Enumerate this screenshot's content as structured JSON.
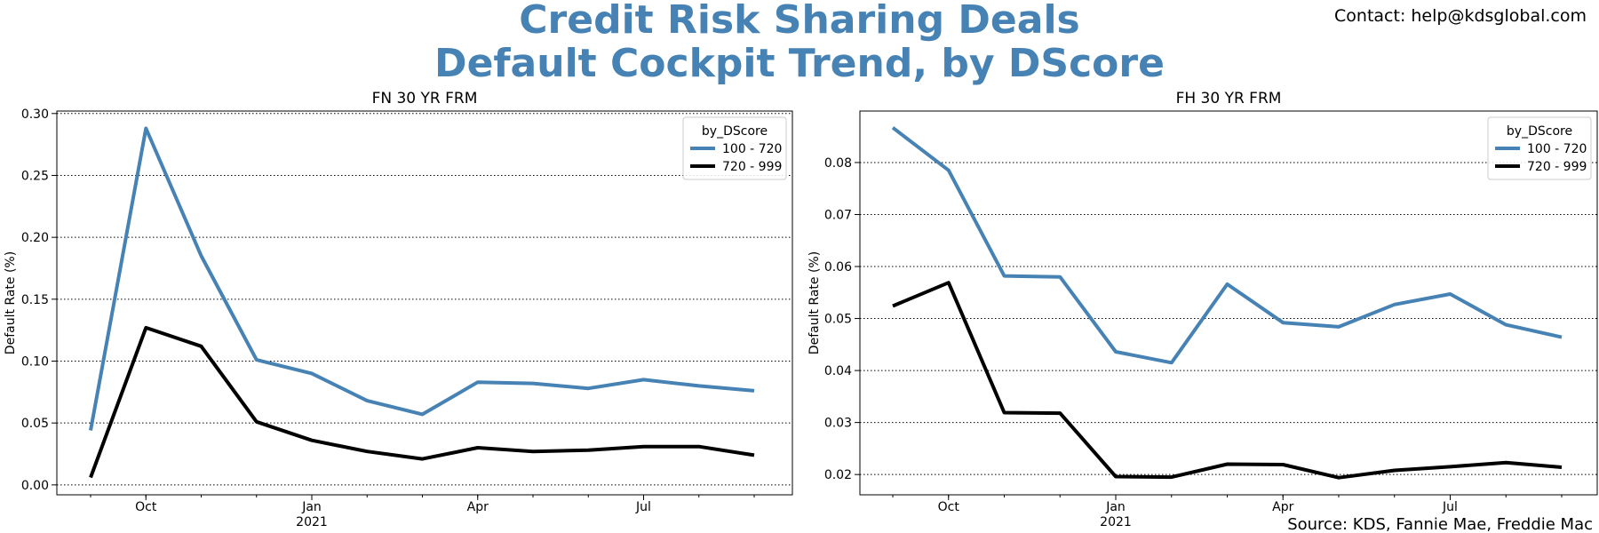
{
  "header": {
    "title_line1": "Credit Risk Sharing Deals",
    "title_line2": "Default Cockpit Trend, by DScore",
    "contact": "Contact: help@kdsglobal.com",
    "source": "Source: KDS, Fannie Mae, Freddie Mac"
  },
  "colors": {
    "accent": "#4682b4",
    "series_high": "#4682b4",
    "series_low": "#000000"
  },
  "chart_data": [
    {
      "type": "line",
      "title": "FN 30 YR FRM",
      "xlabel": "",
      "ylabel": "Default Rate (%)",
      "x": [
        "2020-09",
        "2020-10",
        "2020-11",
        "2020-12",
        "2021-01",
        "2021-02",
        "2021-03",
        "2021-04",
        "2021-05",
        "2021-06",
        "2021-07",
        "2021-08",
        "2021-09"
      ],
      "x_ticks": [
        {
          "month": "2020-10",
          "label": "Oct",
          "sub": ""
        },
        {
          "month": "2021-01",
          "label": "Jan",
          "sub": "2021"
        },
        {
          "month": "2021-04",
          "label": "Apr",
          "sub": ""
        },
        {
          "month": "2021-07",
          "label": "Jul",
          "sub": ""
        }
      ],
      "ylim": [
        -0.008,
        0.302
      ],
      "y_ticks": [
        0.0,
        0.05,
        0.1,
        0.15,
        0.2,
        0.25,
        0.3
      ],
      "y_tick_labels": [
        "0.00",
        "0.05",
        "0.10",
        "0.15",
        "0.20",
        "0.25",
        "0.30"
      ],
      "grid": "horizontal-dotted",
      "legend": {
        "title": "by_DScore",
        "position": "top-right"
      },
      "series": [
        {
          "name": "100 - 720",
          "color": "#4682b4",
          "values": [
            0.044,
            0.288,
            0.185,
            0.101,
            0.09,
            0.068,
            0.057,
            0.083,
            0.082,
            0.078,
            0.085,
            0.08,
            0.076
          ]
        },
        {
          "name": "720 - 999",
          "color": "#000000",
          "values": [
            0.006,
            0.127,
            0.112,
            0.051,
            0.036,
            0.027,
            0.021,
            0.03,
            0.027,
            0.028,
            0.031,
            0.031,
            0.024
          ]
        }
      ]
    },
    {
      "type": "line",
      "title": "FH 30 YR FRM",
      "xlabel": "",
      "ylabel": "Default Rate (%)",
      "x": [
        "2020-09",
        "2020-10",
        "2020-11",
        "2020-12",
        "2021-01",
        "2021-02",
        "2021-03",
        "2021-04",
        "2021-05",
        "2021-06",
        "2021-07",
        "2021-08",
        "2021-09"
      ],
      "x_ticks": [
        {
          "month": "2020-10",
          "label": "Oct",
          "sub": ""
        },
        {
          "month": "2021-01",
          "label": "Jan",
          "sub": "2021"
        },
        {
          "month": "2021-04",
          "label": "Apr",
          "sub": ""
        },
        {
          "month": "2021-07",
          "label": "Jul",
          "sub": ""
        }
      ],
      "ylim": [
        0.0161,
        0.0899
      ],
      "y_ticks": [
        0.02,
        0.03,
        0.04,
        0.05,
        0.06,
        0.07,
        0.08
      ],
      "y_tick_labels": [
        "0.02",
        "0.03",
        "0.04",
        "0.05",
        "0.06",
        "0.07",
        "0.08"
      ],
      "grid": "horizontal-dotted",
      "legend": {
        "title": "by_DScore",
        "position": "top-right"
      },
      "series": [
        {
          "name": "100 - 720",
          "color": "#4682b4",
          "values": [
            0.0867,
            0.0785,
            0.0582,
            0.058,
            0.0436,
            0.0415,
            0.0566,
            0.0492,
            0.0484,
            0.0527,
            0.0547,
            0.0488,
            0.0464
          ]
        },
        {
          "name": "720 - 999",
          "color": "#000000",
          "values": [
            0.0524,
            0.0569,
            0.0319,
            0.0318,
            0.0196,
            0.0195,
            0.022,
            0.0219,
            0.0194,
            0.0208,
            0.0215,
            0.0223,
            0.0214
          ]
        }
      ]
    }
  ]
}
